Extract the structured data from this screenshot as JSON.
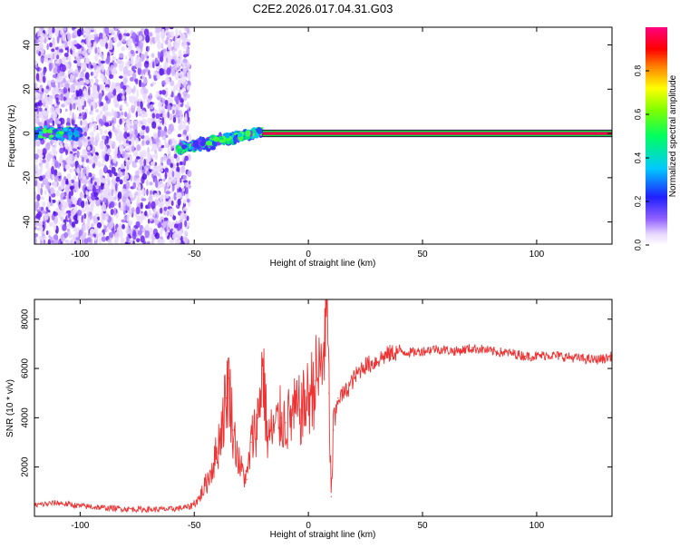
{
  "title": "C2E2.2026.017.04.31.G03",
  "colors": {
    "snr_line": "#ee3333",
    "axis": "#000000",
    "tone": "#e8004a",
    "tone_outline": "#00e040"
  },
  "chart_data": [
    {
      "type": "heatmap",
      "name_panel": "spectrogram",
      "xlabel": "Height of straight line (km)",
      "ylabel": "Frequency (Hz)",
      "xlim": [
        -120,
        133
      ],
      "ylim": [
        -50,
        48
      ],
      "xticks": [
        -100,
        -50,
        0,
        50,
        100
      ],
      "xtick_labels": [
        "-100",
        "-50",
        "0",
        "50",
        "100"
      ],
      "yticks": [
        -40,
        -20,
        0,
        20,
        40
      ],
      "ytick_labels": [
        "-40",
        "-20",
        "0",
        "20",
        "40"
      ],
      "colorbar": {
        "label": "Normalized spectral amplitude",
        "range": [
          0,
          1
        ],
        "ticks": [
          0.0,
          0.2,
          0.4,
          0.6,
          0.8
        ],
        "tick_labels": [
          "0.0",
          "0.2",
          "0.4",
          "0.6",
          "0.8"
        ],
        "colormap": "rainbow (white-purple-blue-cyan-green-yellow-red-magenta)"
      },
      "features": [
        {
          "kind": "noise",
          "x_range": [
            -120,
            -52
          ],
          "freq_range": [
            -50,
            48
          ],
          "amplitude": 0.15
        },
        {
          "kind": "signal_cluster",
          "x_range": [
            -120,
            -100
          ],
          "freq_center": 0,
          "amplitude": 0.4
        },
        {
          "kind": "signal_cluster",
          "x_range": [
            -57,
            -20
          ],
          "freq_center_start": -7,
          "freq_center_end": 1,
          "amplitude": 0.45
        },
        {
          "kind": "steady_tone",
          "x_range": [
            -20,
            133
          ],
          "freq": 0,
          "amplitude": 1.0
        }
      ]
    },
    {
      "type": "line",
      "name_panel": "snr",
      "xlabel": "Height of straight line (km)",
      "ylabel": "SNR (10 * v/v)",
      "xlim": [
        -120,
        133
      ],
      "ylim": [
        0,
        8800
      ],
      "xticks": [
        -100,
        -50,
        0,
        50,
        100
      ],
      "xtick_labels": [
        "-100",
        "-50",
        "0",
        "50",
        "100"
      ],
      "yticks": [
        2000,
        4000,
        6000,
        8000
      ],
      "ytick_labels": [
        "2000",
        "4000",
        "6000",
        "8000"
      ],
      "series": [
        {
          "x": [
            -120,
            -110,
            -100,
            -90,
            -80,
            -70,
            -60,
            -52,
            -48,
            -44,
            -40,
            -36,
            -35,
            -33,
            -30,
            -27,
            -25,
            -22,
            -20,
            -18,
            -15,
            -12,
            -10,
            -6,
            -3,
            0,
            3,
            6,
            8,
            9,
            10,
            11,
            13,
            16,
            20,
            24,
            28,
            32,
            36,
            40,
            45,
            50,
            55,
            60,
            65,
            70,
            75,
            80,
            85,
            90,
            95,
            100,
            105,
            110,
            115,
            120,
            125,
            130,
            133
          ],
          "y": [
            450,
            550,
            420,
            350,
            300,
            280,
            290,
            380,
            700,
            1500,
            2600,
            4800,
            5600,
            3500,
            2000,
            1500,
            3000,
            4000,
            6300,
            3200,
            3500,
            4000,
            3800,
            4200,
            4300,
            4800,
            5500,
            6000,
            8700,
            5000,
            800,
            3500,
            4800,
            5000,
            5600,
            6100,
            6200,
            6450,
            6600,
            6700,
            6650,
            6700,
            6800,
            6750,
            6700,
            6800,
            6800,
            6700,
            6650,
            6600,
            6500,
            6500,
            6550,
            6500,
            6450,
            6400,
            6350,
            6400,
            6500
          ]
        }
      ]
    }
  ]
}
